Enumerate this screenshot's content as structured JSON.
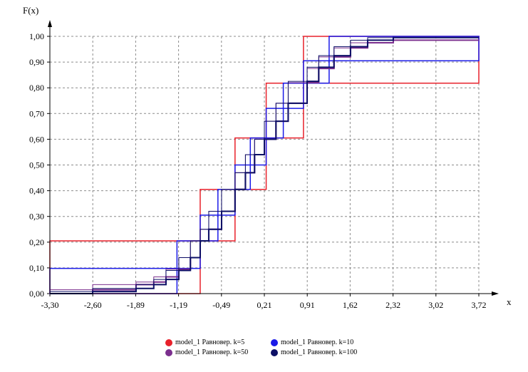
{
  "chart_data": {
    "type": "line",
    "title": "",
    "xlabel": "x",
    "ylabel": "F(x)",
    "xlim": [
      -3.3,
      3.72
    ],
    "ylim": [
      0,
      1
    ],
    "grid": true,
    "legend_position": "bottom",
    "x_ticks": [
      "-3,30",
      "-2,60",
      "-1,89",
      "-1,19",
      "-0,49",
      "0,21",
      "0,91",
      "1,62",
      "2,32",
      "3,02",
      "3,72"
    ],
    "y_ticks": [
      "0,00",
      "0,10",
      "0,20",
      "0,30",
      "0,40",
      "0,50",
      "0,60",
      "0,70",
      "0,80",
      "0,90",
      "1,00"
    ],
    "series": [
      {
        "name": "model_1 Равновер. k=5",
        "color": "#e8212b",
        "bins": [
          {
            "x0": -3.3,
            "x1": -0.84,
            "F0": 0.0,
            "F1": 0.205
          },
          {
            "x0": -0.84,
            "x1": -0.27,
            "F0": 0.205,
            "F1": 0.405
          },
          {
            "x0": -0.27,
            "x1": 0.24,
            "F0": 0.405,
            "F1": 0.605
          },
          {
            "x0": 0.24,
            "x1": 0.85,
            "F0": 0.605,
            "F1": 0.818
          },
          {
            "x0": 0.85,
            "x1": 3.72,
            "F0": 0.818,
            "F1": 1.0
          }
        ]
      },
      {
        "name": "model_1 Равновер. k=10",
        "color": "#1a1ae8",
        "bins": [
          {
            "x0": -3.3,
            "x1": -1.22,
            "F0": 0.0,
            "F1": 0.098
          },
          {
            "x0": -1.22,
            "x1": -0.84,
            "F0": 0.098,
            "F1": 0.205
          },
          {
            "x0": -0.84,
            "x1": -0.55,
            "F0": 0.205,
            "F1": 0.305
          },
          {
            "x0": -0.55,
            "x1": -0.27,
            "F0": 0.305,
            "F1": 0.405
          },
          {
            "x0": -0.27,
            "x1": -0.02,
            "F0": 0.405,
            "F1": 0.5
          },
          {
            "x0": -0.02,
            "x1": 0.24,
            "F0": 0.5,
            "F1": 0.605
          },
          {
            "x0": 0.24,
            "x1": 0.52,
            "F0": 0.605,
            "F1": 0.72
          },
          {
            "x0": 0.52,
            "x1": 0.85,
            "F0": 0.72,
            "F1": 0.818
          },
          {
            "x0": 0.85,
            "x1": 1.27,
            "F0": 0.818,
            "F1": 0.905
          },
          {
            "x0": 1.27,
            "x1": 3.72,
            "F0": 0.905,
            "F1": 1.0
          }
        ]
      },
      {
        "name": "model_1 Равновер. k=50",
        "color": "#7b2f8e",
        "points": [
          [
            -3.3,
            0.0
          ],
          [
            -2.6,
            0.015
          ],
          [
            -1.89,
            0.035
          ],
          [
            -1.6,
            0.045
          ],
          [
            -1.4,
            0.065
          ],
          [
            -1.19,
            0.095
          ],
          [
            -1.0,
            0.14
          ],
          [
            -0.84,
            0.205
          ],
          [
            -0.7,
            0.25
          ],
          [
            -0.49,
            0.32
          ],
          [
            -0.27,
            0.405
          ],
          [
            -0.1,
            0.47
          ],
          [
            0.05,
            0.54
          ],
          [
            0.21,
            0.6
          ],
          [
            0.4,
            0.67
          ],
          [
            0.6,
            0.74
          ],
          [
            0.91,
            0.82
          ],
          [
            1.1,
            0.875
          ],
          [
            1.35,
            0.92
          ],
          [
            1.62,
            0.955
          ],
          [
            1.9,
            0.975
          ],
          [
            2.32,
            0.985
          ],
          [
            3.72,
            0.985
          ]
        ]
      },
      {
        "name": "model_1 Равновер. k=100",
        "color": "#0d1066",
        "points": [
          [
            -3.3,
            0.0
          ],
          [
            -2.6,
            0.008
          ],
          [
            -1.89,
            0.02
          ],
          [
            -1.6,
            0.035
          ],
          [
            -1.4,
            0.055
          ],
          [
            -1.19,
            0.09
          ],
          [
            -1.0,
            0.14
          ],
          [
            -0.84,
            0.205
          ],
          [
            -0.7,
            0.25
          ],
          [
            -0.49,
            0.32
          ],
          [
            -0.27,
            0.405
          ],
          [
            -0.1,
            0.47
          ],
          [
            0.05,
            0.54
          ],
          [
            0.21,
            0.6
          ],
          [
            0.4,
            0.67
          ],
          [
            0.6,
            0.74
          ],
          [
            0.91,
            0.825
          ],
          [
            1.1,
            0.88
          ],
          [
            1.35,
            0.925
          ],
          [
            1.62,
            0.96
          ],
          [
            1.9,
            0.985
          ],
          [
            2.32,
            0.995
          ],
          [
            3.72,
            0.995
          ]
        ]
      }
    ]
  }
}
